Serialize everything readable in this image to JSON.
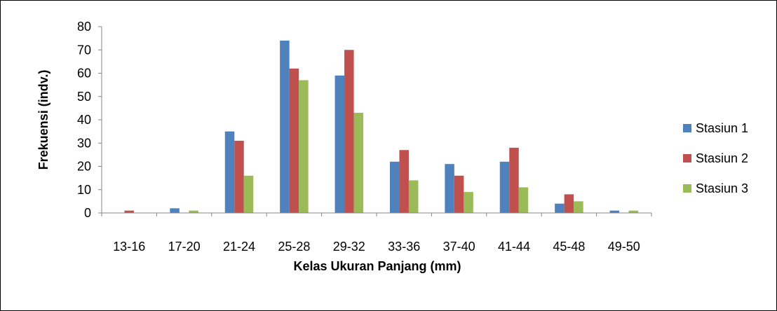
{
  "chart_data": {
    "type": "bar",
    "title": "",
    "xlabel": "Kelas Ukuran Panjang (mm)",
    "ylabel": "Frekuensi  (indv.)",
    "ylim": [
      0,
      80
    ],
    "yticks": [
      0,
      10,
      20,
      30,
      40,
      50,
      60,
      70,
      80
    ],
    "grid": false,
    "legend_position": "right",
    "categories": [
      "13-16",
      "17-20",
      "21-24",
      "25-28",
      "29-32",
      "33-36",
      "37-40",
      "41-44",
      "45-48",
      "49-50"
    ],
    "series": [
      {
        "name": "Stasiun 1",
        "color": "#4F81BD",
        "values": [
          0,
          2,
          35,
          74,
          59,
          22,
          21,
          22,
          4,
          1
        ]
      },
      {
        "name": "Stasiun 2",
        "color": "#C0504D",
        "values": [
          1,
          0,
          31,
          62,
          70,
          27,
          16,
          28,
          8,
          0
        ]
      },
      {
        "name": "Stasiun 3",
        "color": "#9BBB59",
        "values": [
          0,
          1,
          16,
          57,
          43,
          14,
          9,
          11,
          5,
          1
        ]
      }
    ]
  }
}
